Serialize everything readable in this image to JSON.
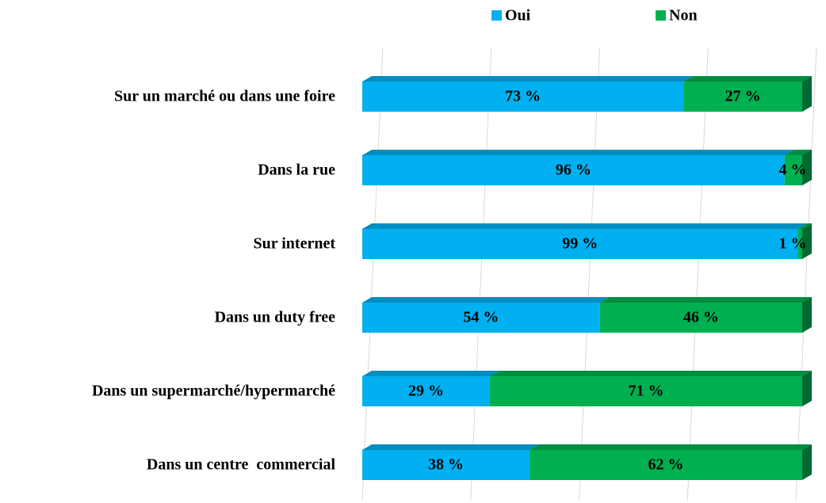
{
  "chart_data": {
    "type": "stacked_bar_horizontal",
    "categories": [
      "Sur un marché ou dans une foire",
      "Dans la rue",
      "Sur internet",
      "Dans un duty free",
      "Dans un supermarché/hypermarché",
      "Dans un centre  commercial"
    ],
    "series": [
      {
        "name": "Oui",
        "color": "#00b0f0",
        "values": [
          73,
          96,
          99,
          54,
          29,
          38
        ],
        "value_labels": [
          "73 %",
          "96 %",
          "99 %",
          "54 %",
          "29 %",
          "38 %"
        ]
      },
      {
        "name": "Non",
        "color": "#00b050",
        "values": [
          27,
          4,
          1,
          46,
          71,
          62
        ],
        "value_labels": [
          "27 %",
          "4 %",
          "1 %",
          "46 %",
          "71 %",
          "62 %"
        ]
      }
    ],
    "xlim": [
      0,
      100
    ],
    "xticks": [
      0,
      25,
      50,
      75,
      100
    ],
    "grid": true,
    "legend": "top"
  }
}
